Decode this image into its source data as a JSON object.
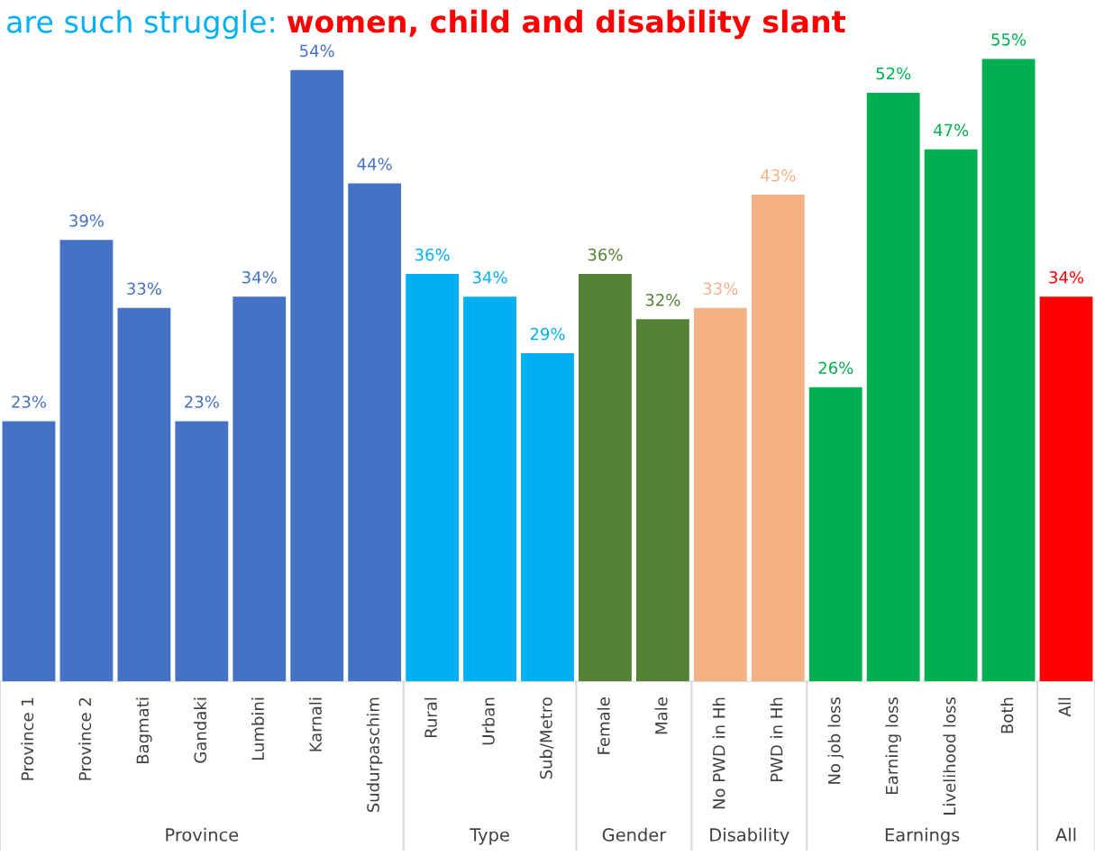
{
  "chart_data": {
    "type": "bar",
    "title": "are such struggle:",
    "subtitle": "women, child and disability slant",
    "categories": [
      "Province 1",
      "Province 2",
      "Bagmati",
      "Gandaki",
      "Lumbini",
      "Karnali",
      "Sudurpaschim",
      "Rural",
      "Urban",
      "Sub/Metro",
      "Female",
      "Male",
      "No PWD in Hh",
      "PWD in Hh",
      "No job loss",
      "Earning loss",
      "Livelihood loss",
      "Both",
      "All"
    ],
    "series": [
      {
        "color": "#4472c4",
        "values": [
          23,
          39,
          33,
          23,
          34,
          54,
          44,
          null,
          null,
          null,
          null,
          null,
          null,
          null,
          null,
          null,
          null,
          null,
          null
        ],
        "value_labels": [
          "23%",
          "39%",
          "33%",
          "23%",
          "34%",
          "54%",
          "44%",
          null,
          null,
          null,
          null,
          null,
          null,
          null,
          null,
          null,
          null,
          null,
          null
        ]
      },
      {
        "color": "#00b0f0",
        "values": [
          null,
          null,
          null,
          null,
          null,
          null,
          null,
          36,
          34,
          29,
          null,
          null,
          null,
          null,
          null,
          null,
          null,
          null,
          null
        ],
        "value_labels": [
          null,
          null,
          null,
          null,
          null,
          null,
          null,
          "36%",
          "34%",
          "29%",
          null,
          null,
          null,
          null,
          null,
          null,
          null,
          null,
          null
        ]
      },
      {
        "color": "#548235",
        "values": [
          null,
          null,
          null,
          null,
          null,
          null,
          null,
          null,
          null,
          null,
          36,
          32,
          null,
          null,
          null,
          null,
          null,
          null,
          null
        ],
        "value_labels": [
          null,
          null,
          null,
          null,
          null,
          null,
          null,
          null,
          null,
          null,
          "36%",
          "32%",
          null,
          null,
          null,
          null,
          null,
          null,
          null
        ]
      },
      {
        "color": "#f4b183",
        "values": [
          null,
          null,
          null,
          null,
          null,
          null,
          null,
          null,
          null,
          null,
          null,
          null,
          33,
          43,
          null,
          null,
          null,
          null,
          null
        ],
        "value_labels": [
          null,
          null,
          null,
          null,
          null,
          null,
          null,
          null,
          null,
          null,
          null,
          null,
          "33%",
          "43%",
          null,
          null,
          null,
          null,
          null
        ]
      },
      {
        "color": "#00b050",
        "values": [
          null,
          null,
          null,
          null,
          null,
          null,
          null,
          null,
          null,
          null,
          null,
          null,
          null,
          null,
          26,
          52,
          47,
          55,
          null
        ],
        "value_labels": [
          null,
          null,
          null,
          null,
          null,
          null,
          null,
          null,
          null,
          null,
          null,
          null,
          null,
          null,
          "26%",
          "52%",
          "47%",
          "55%",
          null
        ]
      },
      {
        "color": "#ff0000",
        "values": [
          null,
          null,
          null,
          null,
          null,
          null,
          null,
          null,
          null,
          null,
          null,
          null,
          null,
          null,
          null,
          null,
          null,
          null,
          34
        ],
        "value_labels": [
          null,
          null,
          null,
          null,
          null,
          null,
          null,
          null,
          null,
          null,
          null,
          null,
          null,
          null,
          null,
          null,
          null,
          null,
          "34%"
        ]
      }
    ],
    "annotations": [
      "Province",
      "Type",
      "Gender",
      "Disability",
      "Earnings",
      "All"
    ],
    "grid": false,
    "legend": false
  }
}
